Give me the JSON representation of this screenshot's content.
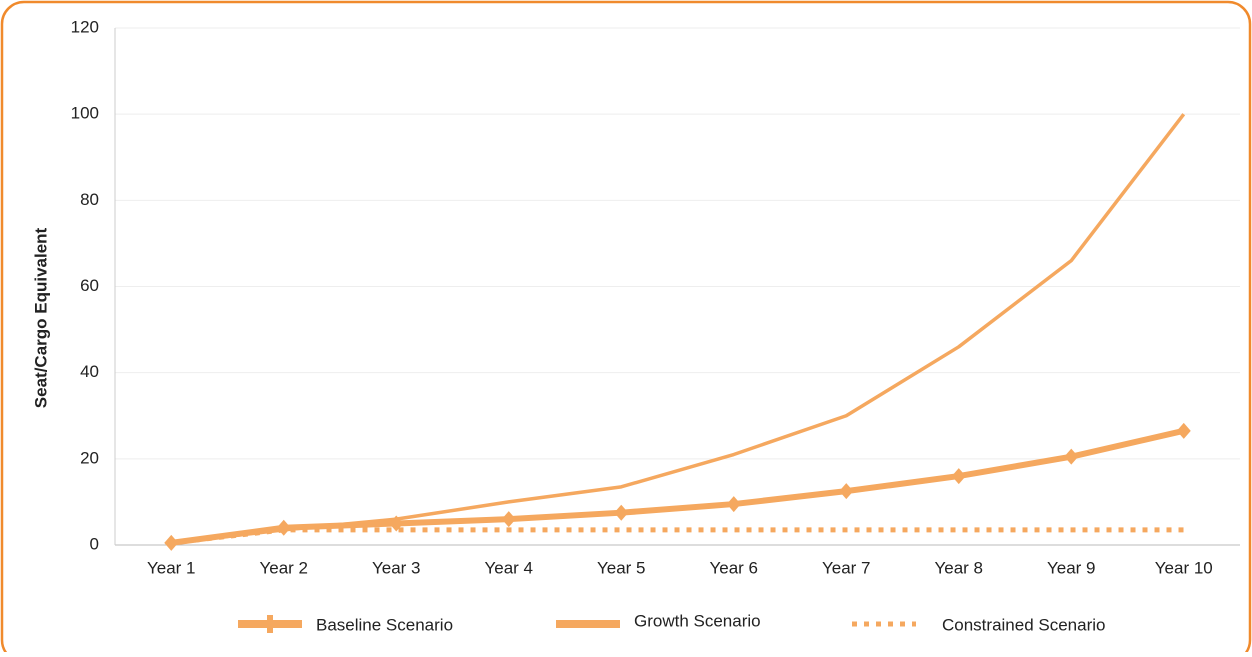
{
  "chart_data": {
    "type": "line",
    "ylabel": "Seat/Cargo Equivalent",
    "categories": [
      "Year 1",
      "Year 2",
      "Year 3",
      "Year 4",
      "Year 5",
      "Year 6",
      "Year 7",
      "Year 8",
      "Year 9",
      "Year 10"
    ],
    "series": [
      {
        "name": "Baseline Scenario",
        "color": "#f5a85f",
        "marker": "diamond",
        "style": "solid",
        "values": [
          0.5,
          4,
          5,
          6,
          7.5,
          9.5,
          12.5,
          16,
          20.5,
          26.5
        ]
      },
      {
        "name": "Growth Scenario",
        "color": "#f5a85f",
        "marker": "none",
        "style": "solid",
        "values": [
          0.5,
          3.5,
          6,
          10,
          13.5,
          21,
          30,
          46,
          66,
          100
        ]
      },
      {
        "name": "Constrained Scenario",
        "color": "#f5a85f",
        "marker": "none",
        "style": "dotted",
        "values": [
          0.5,
          3.5,
          3.5,
          3.5,
          3.5,
          3.5,
          3.5,
          3.5,
          3.5,
          3.5
        ]
      }
    ],
    "ylim": [
      0,
      120
    ],
    "yticks": [
      0,
      20,
      40,
      60,
      80,
      100,
      120
    ],
    "grid": true
  }
}
